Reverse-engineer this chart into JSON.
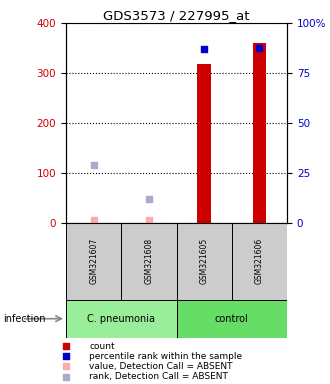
{
  "title": "GDS3573 / 227995_at",
  "samples": [
    "GSM321607",
    "GSM321608",
    "GSM321605",
    "GSM321606"
  ],
  "bar_values": [
    0,
    0,
    318,
    360
  ],
  "bar_color": "#cc0000",
  "bar_width": 0.25,
  "perc_left_values": [
    null,
    null,
    347,
    350
  ],
  "perc_color": "#0000cc",
  "absent_value_values": [
    5,
    5,
    null,
    null
  ],
  "absent_value_color": "#ffaaaa",
  "absent_rank_values": [
    116,
    47,
    null,
    null
  ],
  "absent_rank_color": "#aaaacc",
  "ylim_left": [
    0,
    400
  ],
  "ylim_right": [
    0,
    100
  ],
  "yticks_left": [
    0,
    100,
    200,
    300,
    400
  ],
  "yticks_right": [
    0,
    25,
    50,
    75,
    100
  ],
  "ytick_labels_right": [
    "0",
    "25",
    "50",
    "75",
    "100%"
  ],
  "left_axis_color": "#cc0000",
  "right_axis_color": "#0000cc",
  "infection_label": "infection",
  "group_names": [
    "C. pneumonia",
    "control"
  ],
  "group_colors": [
    "#99ee99",
    "#66dd66"
  ],
  "sample_box_color": "#cccccc",
  "legend_items": [
    {
      "label": "count",
      "color": "#cc0000"
    },
    {
      "label": "percentile rank within the sample",
      "color": "#0000cc"
    },
    {
      "label": "value, Detection Call = ABSENT",
      "color": "#ffaaaa"
    },
    {
      "label": "rank, Detection Call = ABSENT",
      "color": "#aaaacc"
    }
  ]
}
